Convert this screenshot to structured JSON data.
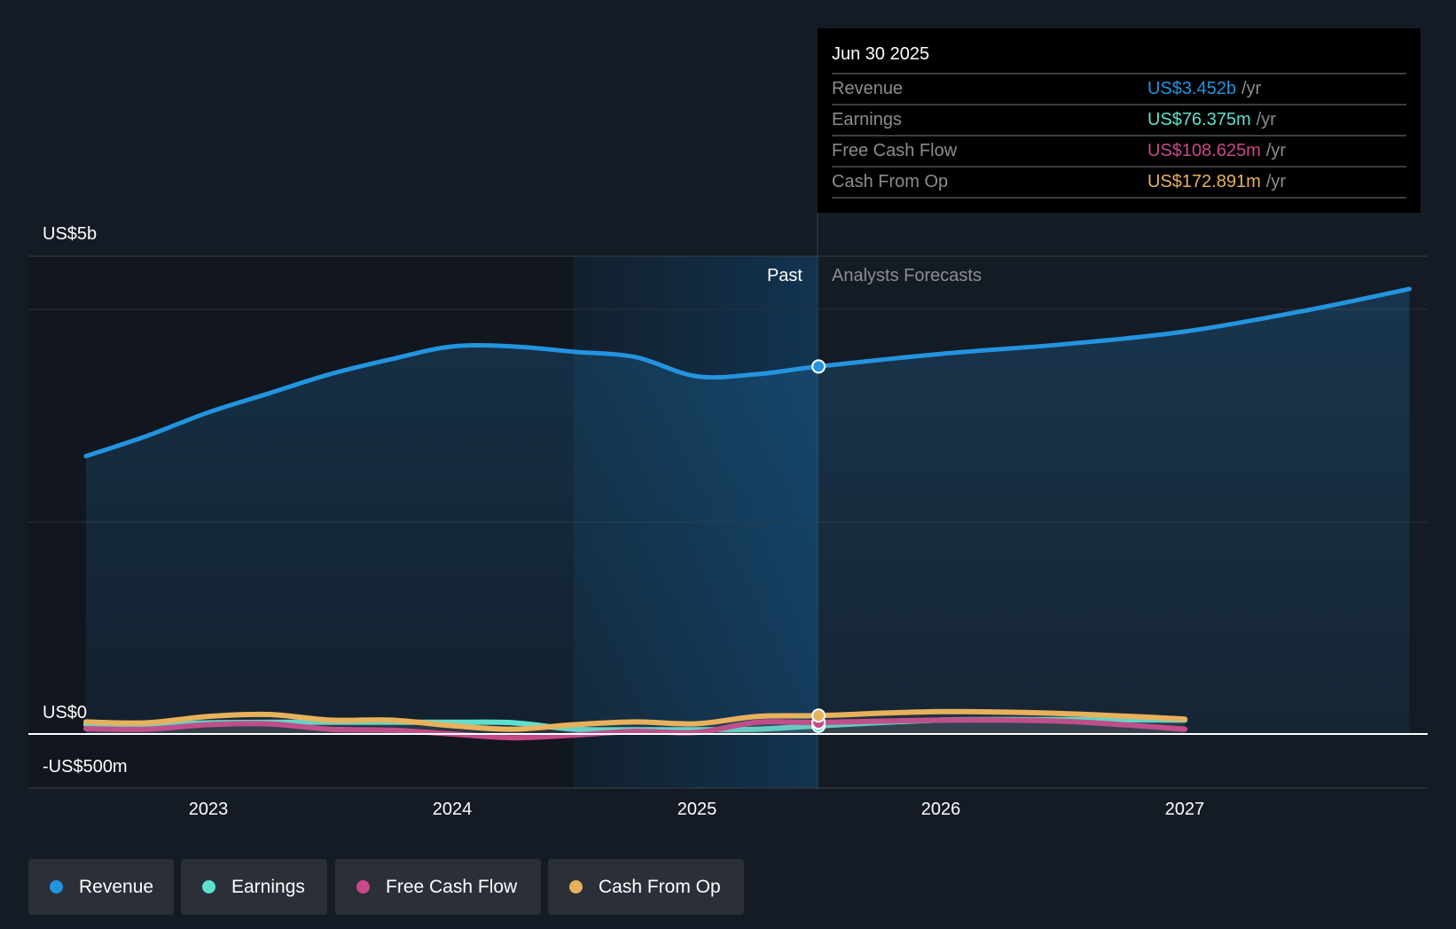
{
  "colors": {
    "revenue": "#2394df",
    "earnings": "#5fe0cf",
    "fcf": "#c9488a",
    "cfo": "#e8b15c"
  },
  "y_labels": {
    "top": "US$5b",
    "zero": "US$0",
    "neg": "-US$500m"
  },
  "regions": {
    "past": "Past",
    "forecast": "Analysts Forecasts"
  },
  "tooltip": {
    "date": "Jun 30 2025",
    "rows": [
      {
        "label": "Revenue",
        "value": "US$3.452b",
        "unit": "/yr"
      },
      {
        "label": "Earnings",
        "value": "US$76.375m",
        "unit": "/yr"
      },
      {
        "label": "Free Cash Flow",
        "value": "US$108.625m",
        "unit": "/yr"
      },
      {
        "label": "Cash From Op",
        "value": "US$172.891m",
        "unit": "/yr"
      }
    ]
  },
  "legend": [
    {
      "label": "Revenue"
    },
    {
      "label": "Earnings"
    },
    {
      "label": "Free Cash Flow"
    },
    {
      "label": "Cash From Op"
    }
  ],
  "chart_data": {
    "type": "area",
    "xlabel": "",
    "ylabel": "",
    "x_ticks": [
      "2023",
      "2024",
      "2025",
      "2026",
      "2027"
    ],
    "y_unit": "US$ billions",
    "ylim": [
      -0.5,
      4.49
    ],
    "past_end": 2025.5,
    "series": [
      {
        "name": "Revenue",
        "key": "revenue",
        "x": [
          2022.5,
          2022.75,
          2023,
          2023.25,
          2023.5,
          2023.75,
          2024,
          2024.25,
          2024.5,
          2024.75,
          2025,
          2025.25,
          2025.5,
          2026,
          2026.5,
          2027,
          2027.5,
          2027.92
        ],
        "values": [
          2.61,
          2.8,
          3.02,
          3.2,
          3.38,
          3.52,
          3.64,
          3.64,
          3.59,
          3.54,
          3.36,
          3.38,
          3.452,
          3.57,
          3.66,
          3.78,
          3.98,
          4.18
        ]
      },
      {
        "name": "Earnings",
        "key": "earnings",
        "x": [
          2022.5,
          2022.75,
          2023,
          2023.25,
          2023.5,
          2023.75,
          2024,
          2024.25,
          2024.5,
          2024.75,
          2025,
          2025.25,
          2025.5,
          2026,
          2026.5,
          2027
        ],
        "values": [
          0.087,
          0.085,
          0.105,
          0.11,
          0.11,
          0.11,
          0.11,
          0.105,
          0.045,
          0.04,
          0.04,
          0.045,
          0.076,
          0.13,
          0.135,
          0.13
        ]
      },
      {
        "name": "Free Cash Flow",
        "key": "fcf",
        "x": [
          2022.5,
          2022.75,
          2023,
          2023.25,
          2023.5,
          2023.75,
          2024,
          2024.25,
          2024.5,
          2024.75,
          2025,
          2025.25,
          2025.5,
          2026,
          2026.5,
          2027
        ],
        "values": [
          0.05,
          0.045,
          0.087,
          0.095,
          0.045,
          0.035,
          0.0,
          -0.035,
          -0.01,
          0.025,
          0.015,
          0.11,
          0.1086,
          0.13,
          0.12,
          0.045
        ]
      },
      {
        "name": "Cash From Op",
        "key": "cfo",
        "x": [
          2022.5,
          2022.75,
          2023,
          2023.25,
          2023.5,
          2023.75,
          2024,
          2024.25,
          2024.5,
          2024.75,
          2025,
          2025.25,
          2025.5,
          2026,
          2026.5,
          2027
        ],
        "values": [
          0.113,
          0.105,
          0.165,
          0.183,
          0.13,
          0.13,
          0.078,
          0.045,
          0.087,
          0.113,
          0.096,
          0.165,
          0.1729,
          0.21,
          0.192,
          0.14
        ]
      }
    ]
  }
}
